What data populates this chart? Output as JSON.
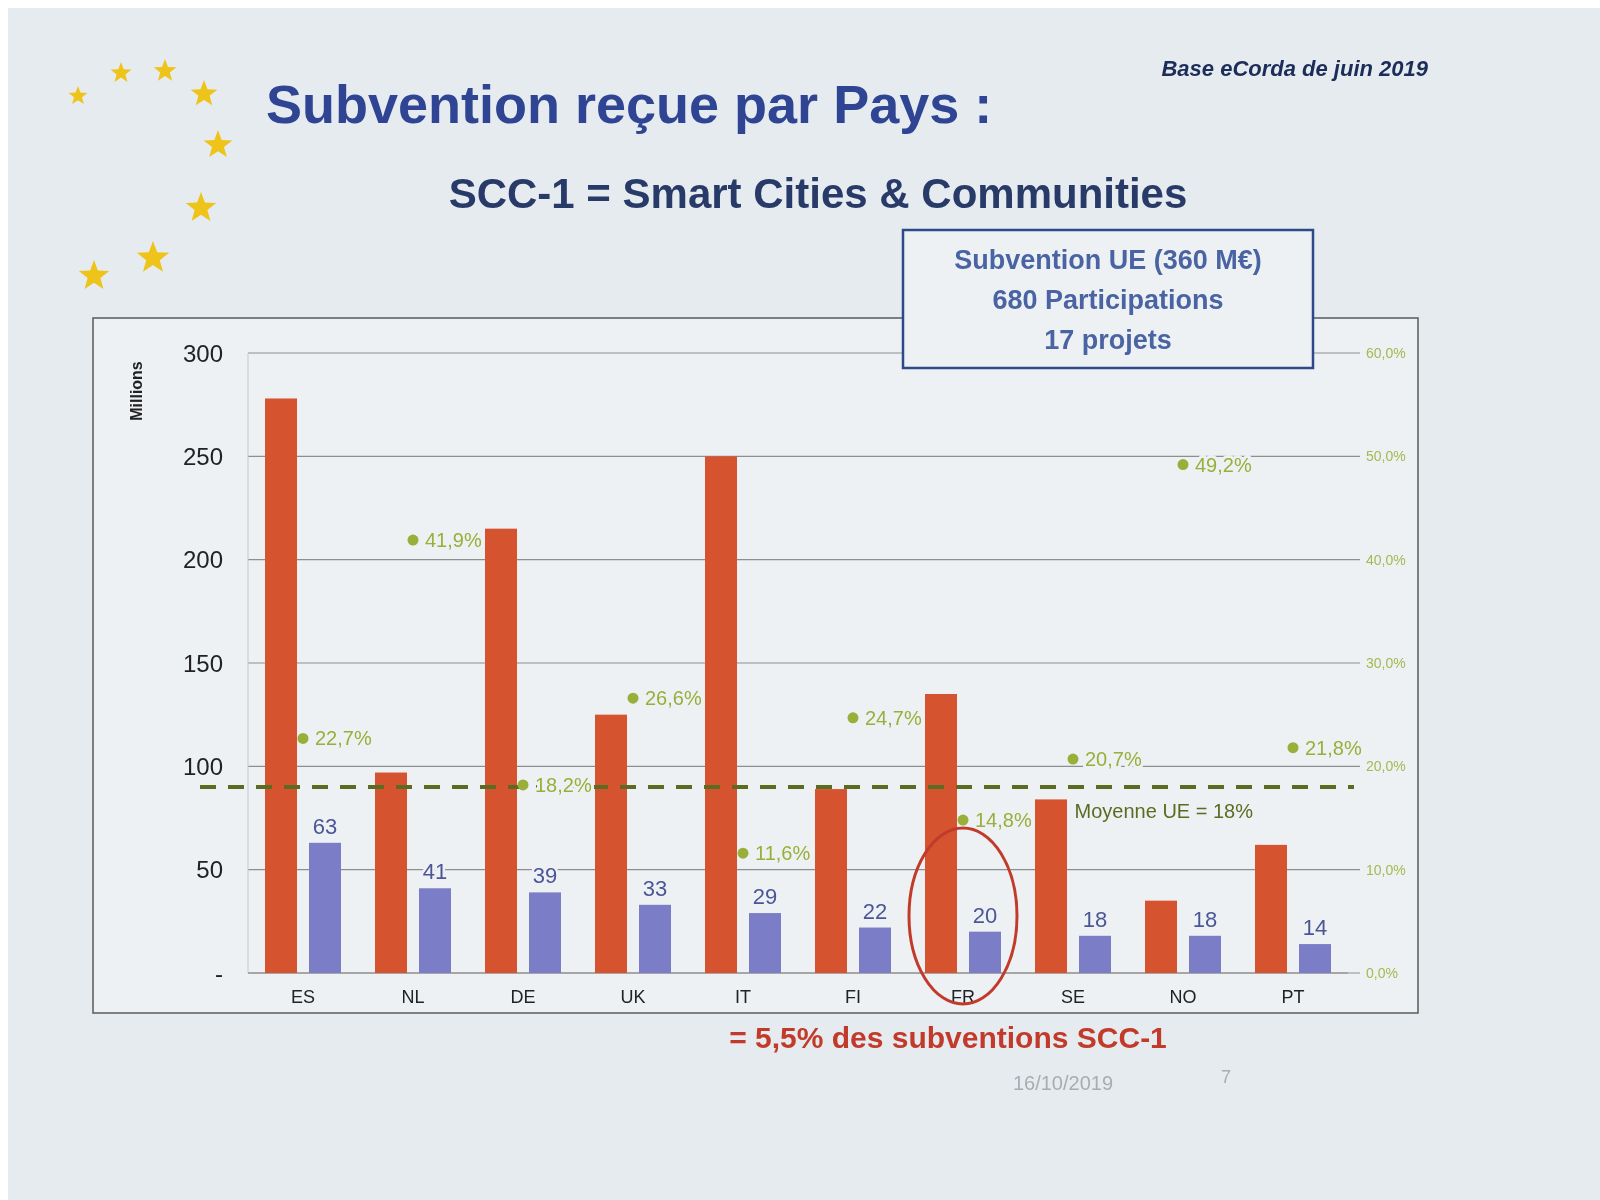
{
  "chart_data": {
    "type": "bar",
    "title": "Subvention reçue par Pays :",
    "subtitle": "SCC-1 = Smart Cities & Communities",
    "ylabel": "Millions",
    "annotations": [
      "Base eCorda de juin 2019",
      "Subvention UE (360 M€)",
      "680 Participations",
      "17 projets",
      "= 5,5% des subventions SCC-1",
      "16/10/2019",
      "7"
    ],
    "categories": [
      "ES",
      "NL",
      "DE",
      "UK",
      "IT",
      "FI",
      "FR",
      "SE",
      "NO",
      "PT"
    ],
    "series": [
      {
        "color": "#d6532f",
        "values": [
          278,
          97,
          215,
          125,
          250,
          89,
          135,
          84,
          35,
          62
        ]
      },
      {
        "color": "#7b7ec6",
        "values": [
          63,
          41,
          39,
          33,
          29,
          22,
          20,
          18,
          18,
          14
        ],
        "value_labels": [
          "63",
          "41",
          "39",
          "33",
          "29",
          "22",
          "20",
          "18",
          "18",
          "14"
        ]
      },
      {
        "type": "scatter",
        "axis": "y2",
        "color": "#9aae3a",
        "values": [
          22.7,
          41.9,
          18.2,
          26.6,
          11.6,
          24.7,
          14.8,
          20.7,
          49.2,
          21.8
        ],
        "value_labels": [
          "22,7%",
          "41,9%",
          "18,2%",
          "26,6%",
          "11,6%",
          "24,7%",
          "14,8%",
          "20,7%",
          "49,2%",
          "21,8%"
        ]
      }
    ],
    "ylim": [
      0,
      300
    ],
    "yticks": [
      {
        "value": 0,
        "label": "-"
      },
      50,
      100,
      150,
      200,
      250,
      300
    ],
    "y2lim": [
      0,
      60
    ],
    "y2ticks": [
      {
        "value": 0,
        "label": "0,0%"
      },
      {
        "value": 10,
        "label": "10,0%"
      },
      {
        "value": 20,
        "label": "20,0%"
      },
      {
        "value": 30,
        "label": "30,0%"
      },
      {
        "value": 40,
        "label": "40,0%"
      },
      {
        "value": 50,
        "label": "50,0%"
      },
      {
        "value": 60,
        "label": "60,0%"
      }
    ],
    "ref_lines": [
      {
        "axis": "y2",
        "value": 18,
        "label": "Moyenne UE = 18%",
        "color": "#5b6b22",
        "line_style": "dashed"
      }
    ],
    "grid": "y",
    "marker": "circle"
  }
}
